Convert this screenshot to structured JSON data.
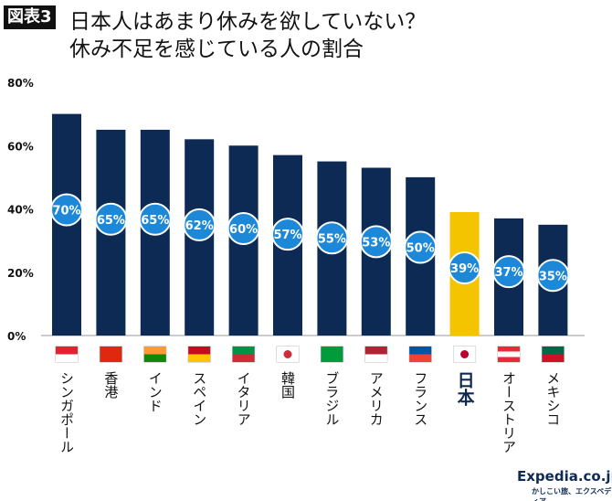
{
  "figure_label": "図表3",
  "title_line1": "日本人はあまり休みを欲していない？",
  "title_line2": "休み不足を感じている人の割合",
  "logo": {
    "text": "Expedia.co.jp",
    "tagline": "かしこい旅、エクスペディア"
  },
  "colors": {
    "bar": "#0d2a55",
    "highlight": "#f5c400",
    "circle": "#1e88d8"
  },
  "chart_data": {
    "type": "bar",
    "categories": [
      "シンガポール",
      "香港",
      "インド",
      "スペイン",
      "イタリア",
      "韓国",
      "ブラジル",
      "アメリカ",
      "フランス",
      "日本",
      "オーストリア",
      "メキシコ"
    ],
    "values": [
      70,
      65,
      65,
      62,
      60,
      57,
      55,
      53,
      50,
      39,
      37,
      35
    ],
    "data_labels": [
      "70%",
      "65%",
      "65%",
      "62%",
      "60%",
      "57%",
      "55%",
      "53%",
      "50%",
      "39%",
      "37%",
      "35%"
    ],
    "highlight": "日本",
    "ylim": [
      0,
      80
    ],
    "yticks": [
      0,
      20,
      40,
      60,
      80
    ],
    "ytick_labels": [
      "0%",
      "20%",
      "40%",
      "60%",
      "80%"
    ],
    "grid": false,
    "flags": [
      "singapore-flag",
      "hong-kong-flag",
      "india-flag",
      "spain-flag",
      "italy-flag",
      "korea-flag",
      "brazil-flag",
      "usa-flag",
      "france-flag",
      "japan-flag",
      "austria-flag",
      "mexico-flag"
    ]
  }
}
